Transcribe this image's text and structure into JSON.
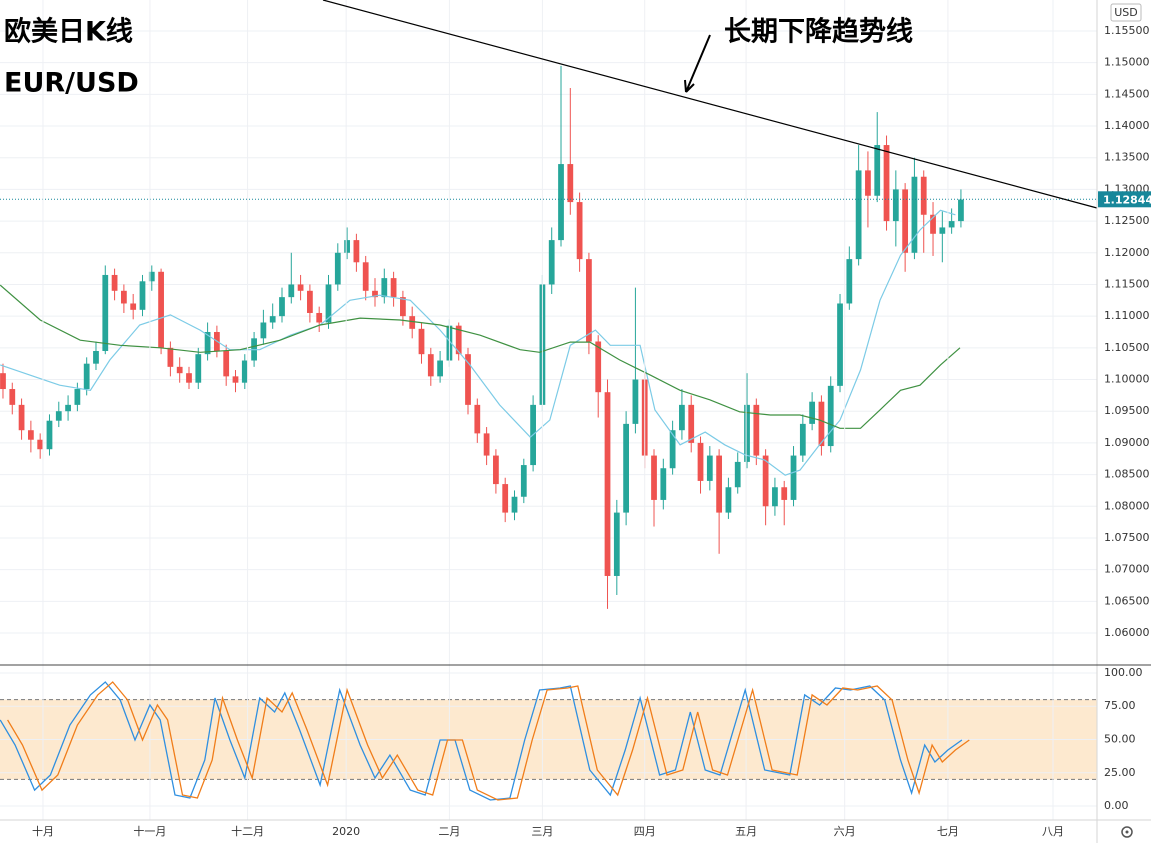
{
  "chart_data": [
    {
      "type": "candlestick",
      "title": "欧美日K线",
      "subtitle": "EUR/USD",
      "annotation": "长期下降趋势线",
      "currency": "USD",
      "last_price": 1.12844,
      "last_price_color": "#17879a",
      "up_color": "#26a69a",
      "down_color": "#ef5350",
      "grid": true,
      "xlim": [
        -0.32,
        117.63
      ],
      "ylim": [
        1.05495,
        1.15989
      ],
      "yticks": [
        {
          "value": 1.06,
          "label": "1.06000"
        },
        {
          "value": 1.065,
          "label": "1.06500"
        },
        {
          "value": 1.07,
          "label": "1.07000"
        },
        {
          "value": 1.075,
          "label": "1.07500"
        },
        {
          "value": 1.08,
          "label": "1.08000"
        },
        {
          "value": 1.085,
          "label": "1.08500"
        },
        {
          "value": 1.09,
          "label": "1.09000"
        },
        {
          "value": 1.095,
          "label": "1.09500"
        },
        {
          "value": 1.1,
          "label": "1.10000"
        },
        {
          "value": 1.105,
          "label": "1.10500"
        },
        {
          "value": 1.11,
          "label": "1.11000"
        },
        {
          "value": 1.115,
          "label": "1.11500"
        },
        {
          "value": 1.12,
          "label": "1.12000"
        },
        {
          "value": 1.125,
          "label": "1.12500"
        },
        {
          "value": 1.13,
          "label": "1.13000"
        },
        {
          "value": 1.135,
          "label": "1.13500"
        },
        {
          "value": 1.14,
          "label": "1.14000"
        },
        {
          "value": 1.145,
          "label": "1.14500"
        },
        {
          "value": 1.15,
          "label": "1.15000"
        },
        {
          "value": 1.155,
          "label": "1.15500"
        }
      ],
      "open": [
        1.101,
        1.0985,
        1.096,
        1.092,
        1.0905,
        1.089,
        1.0935,
        1.095,
        1.096,
        1.0985,
        1.1025,
        1.1045,
        1.1165,
        1.114,
        1.112,
        1.111,
        1.1155,
        1.117,
        1.105,
        1.102,
        1.101,
        1.0995,
        1.104,
        1.1075,
        1.1045,
        1.1005,
        1.0995,
        1.103,
        1.1065,
        1.109,
        1.11,
        1.113,
        1.115,
        1.114,
        1.1105,
        1.109,
        1.115,
        1.12,
        1.122,
        1.1185,
        1.114,
        1.113,
        1.116,
        1.113,
        1.11,
        1.108,
        1.104,
        1.1005,
        1.103,
        1.1085,
        1.104,
        1.096,
        1.0915,
        1.088,
        1.0835,
        1.079,
        1.0815,
        1.0865,
        1.096,
        1.115,
        1.122,
        1.134,
        1.128,
        1.119,
        1.106,
        1.098,
        1.069,
        1.079,
        1.093,
        1.1,
        1.088,
        1.081,
        1.086,
        1.092,
        1.096,
        1.09,
        1.084,
        1.088,
        1.079,
        1.083,
        1.087,
        1.096,
        1.088,
        1.08,
        1.083,
        1.081,
        1.088,
        1.093,
        1.0965,
        1.0895,
        1.099,
        1.112,
        1.119,
        1.133,
        1.129,
        1.137,
        1.125,
        1.13,
        1.12,
        1.132,
        1.126,
        1.123,
        1.124,
        1.125
      ],
      "high": [
        1.1025,
        1.0995,
        1.097,
        1.0935,
        1.0915,
        1.0945,
        1.0965,
        1.0975,
        1.0995,
        1.1035,
        1.106,
        1.118,
        1.1175,
        1.115,
        1.1135,
        1.1165,
        1.118,
        1.1175,
        1.106,
        1.1035,
        1.102,
        1.105,
        1.109,
        1.1085,
        1.1055,
        1.1015,
        1.104,
        1.1075,
        1.111,
        1.112,
        1.1145,
        1.12,
        1.1165,
        1.115,
        1.1115,
        1.1165,
        1.1215,
        1.124,
        1.123,
        1.1195,
        1.116,
        1.1175,
        1.117,
        1.114,
        1.1115,
        1.109,
        1.105,
        1.1045,
        1.1095,
        1.109,
        1.105,
        1.097,
        1.0925,
        1.089,
        1.0845,
        1.0825,
        1.0875,
        1.0975,
        1.1165,
        1.124,
        1.1495,
        1.146,
        1.1295,
        1.12,
        1.107,
        1.1,
        1.081,
        1.095,
        1.1145,
        1.101,
        1.089,
        1.0875,
        1.0935,
        1.0985,
        1.0975,
        1.091,
        1.0895,
        1.089,
        1.0845,
        1.0885,
        1.101,
        1.097,
        1.089,
        1.0845,
        1.084,
        1.0895,
        1.0945,
        1.098,
        1.0975,
        1.1005,
        1.1135,
        1.121,
        1.137,
        1.136,
        1.1422,
        1.1385,
        1.133,
        1.131,
        1.135,
        1.133,
        1.128,
        1.1265,
        1.127,
        1.13
      ],
      "low": [
        1.097,
        1.0945,
        1.0905,
        1.0885,
        1.0875,
        1.088,
        1.0925,
        1.0935,
        1.095,
        1.0975,
        1.1015,
        1.104,
        1.1125,
        1.1105,
        1.1095,
        1.11,
        1.114,
        1.104,
        1.1005,
        1.0995,
        1.0985,
        1.0985,
        1.103,
        1.1035,
        1.099,
        1.098,
        1.0985,
        1.102,
        1.1055,
        1.108,
        1.109,
        1.112,
        1.1125,
        1.109,
        1.1075,
        1.108,
        1.114,
        1.119,
        1.117,
        1.1125,
        1.1115,
        1.112,
        1.1115,
        1.1085,
        1.1065,
        1.1025,
        1.099,
        1.0995,
        1.102,
        1.103,
        1.0945,
        1.09,
        1.0865,
        1.082,
        1.0775,
        1.0778,
        1.0805,
        1.0855,
        1.095,
        1.1135,
        1.121,
        1.126,
        1.117,
        1.104,
        1.094,
        1.0638,
        1.066,
        1.077,
        1.0915,
        1.086,
        1.0768,
        1.0795,
        1.085,
        1.0905,
        1.0885,
        1.082,
        1.0825,
        1.0725,
        1.078,
        1.082,
        1.086,
        1.0865,
        1.077,
        1.0785,
        1.077,
        1.08,
        1.087,
        1.092,
        1.088,
        1.0885,
        1.098,
        1.111,
        1.118,
        1.124,
        1.128,
        1.1235,
        1.121,
        1.117,
        1.119,
        1.12,
        1.1195,
        1.1185,
        1.123,
        1.124
      ],
      "close": [
        1.0985,
        1.096,
        1.092,
        1.0905,
        1.089,
        1.0935,
        1.095,
        1.096,
        1.0985,
        1.1025,
        1.1045,
        1.1165,
        1.114,
        1.112,
        1.111,
        1.1155,
        1.117,
        1.105,
        1.102,
        1.101,
        1.0995,
        1.104,
        1.1075,
        1.1045,
        1.1005,
        1.0995,
        1.103,
        1.1065,
        1.109,
        1.11,
        1.113,
        1.115,
        1.114,
        1.1105,
        1.109,
        1.115,
        1.12,
        1.122,
        1.1185,
        1.114,
        1.113,
        1.116,
        1.113,
        1.11,
        1.108,
        1.104,
        1.1005,
        1.103,
        1.1085,
        1.104,
        1.096,
        1.0915,
        1.088,
        1.0835,
        1.079,
        1.0815,
        1.0865,
        1.096,
        1.115,
        1.122,
        1.134,
        1.128,
        1.119,
        1.106,
        1.098,
        1.069,
        1.079,
        1.093,
        1.1,
        1.088,
        1.081,
        1.086,
        1.092,
        1.096,
        1.09,
        1.084,
        1.088,
        1.079,
        1.083,
        1.087,
        1.096,
        1.088,
        1.08,
        1.083,
        1.081,
        1.088,
        1.093,
        1.0965,
        1.0895,
        1.099,
        1.112,
        1.119,
        1.133,
        1.129,
        1.137,
        1.125,
        1.13,
        1.12,
        1.132,
        1.126,
        1.123,
        1.124,
        1.125,
        1.1284
      ],
      "lines": [
        {
          "color": "#7ccbe6",
          "x": [
            -0.3,
            2.9,
            6.1,
            9.4,
            11.5,
            14.7,
            18,
            21.2,
            24.4,
            27.6,
            30.9,
            34.1,
            37.3,
            40.5,
            43.8,
            47,
            50.2,
            53.4,
            56.7,
            58.8,
            61,
            63.7,
            65.3,
            66.9,
            68.5,
            70.1,
            72.8,
            75.5,
            77.6,
            79.8,
            81.9,
            84.1,
            85.7,
            87.8,
            90,
            92.2,
            94.3,
            96.5,
            98.6,
            100.8,
            102.4
          ],
          "values": [
            1.1023,
            1.1007,
            1.0991,
            1.0983,
            1.1031,
            1.1086,
            1.1102,
            1.1078,
            1.1047,
            1.1047,
            1.107,
            1.1086,
            1.1125,
            1.1133,
            1.1125,
            1.1078,
            1.1023,
            1.096,
            1.0909,
            1.0936,
            1.1054,
            1.1078,
            1.1054,
            1.1054,
            1.1054,
            1.0952,
            1.0897,
            1.0917,
            1.0897,
            1.0881,
            1.0873,
            1.0849,
            1.0857,
            1.0897,
            1.0936,
            1.1015,
            1.1125,
            1.1196,
            1.1236,
            1.1267,
            1.126
          ]
        },
        {
          "color": "#3f9142",
          "x": [
            -0.3,
            4,
            8.3,
            12.6,
            16.9,
            21.2,
            25.5,
            29.8,
            34.1,
            38.4,
            42.7,
            47,
            51.3,
            55.6,
            57.7,
            61,
            63.1,
            66.3,
            69.6,
            72.8,
            76,
            79.2,
            82.5,
            85.7,
            87.8,
            90,
            92.2,
            94.3,
            96.5,
            98.6,
            100.8,
            102.9
          ],
          "values": [
            1.1149,
            1.1094,
            1.1062,
            1.1054,
            1.105,
            1.1043,
            1.1047,
            1.1062,
            1.1086,
            1.1097,
            1.1094,
            1.1086,
            1.107,
            1.1047,
            1.1043,
            1.1059,
            1.1059,
            1.1031,
            1.1007,
            1.0983,
            1.0968,
            1.0949,
            1.0944,
            1.0944,
            1.0936,
            1.0923,
            1.0923,
            1.0952,
            1.0983,
            1.0991,
            1.1023,
            1.105
          ]
        }
      ]
    },
    {
      "type": "line",
      "xlim": [
        -0.32,
        117.63
      ],
      "ylim": [
        -10.5,
        106
      ],
      "band": [
        20,
        80
      ],
      "band_color": "#fde9cf",
      "grid": true,
      "yticks": [
        {
          "value": 0,
          "label": "0.00"
        },
        {
          "value": 25,
          "label": "25.00"
        },
        {
          "value": 50,
          "label": "50.00"
        },
        {
          "value": 75,
          "label": "75.00"
        },
        {
          "value": 100,
          "label": "100.00"
        }
      ],
      "xticks": [
        {
          "value": 4.3,
          "label": "十月"
        },
        {
          "value": 15.8,
          "label": "十一月"
        },
        {
          "value": 26.3,
          "label": "十二月"
        },
        {
          "value": 36.9,
          "label": "2020"
        },
        {
          "value": 48,
          "label": "二月"
        },
        {
          "value": 58,
          "label": "三月"
        },
        {
          "value": 69,
          "label": "四月"
        },
        {
          "value": 79.9,
          "label": "五月"
        },
        {
          "value": 90.5,
          "label": "六月"
        },
        {
          "value": 101.6,
          "label": "七月"
        },
        {
          "value": 112.9,
          "label": "八月"
        }
      ],
      "series": [
        {
          "color": "#2f8fe0",
          "x": [
            -0.3,
            1.3,
            3.4,
            5.1,
            7.2,
            9.4,
            11,
            12.6,
            14.2,
            15.8,
            16.9,
            18.5,
            20.1,
            21.7,
            22.8,
            24.4,
            26,
            27.6,
            29.2,
            30.3,
            31.9,
            34.1,
            36.2,
            38.4,
            40,
            41.6,
            43.8,
            45.4,
            47,
            48.6,
            50.2,
            52.4,
            54.5,
            56.1,
            57.7,
            59.9,
            61,
            63.1,
            65.3,
            66.9,
            68.5,
            70.6,
            72.3,
            73.9,
            75.5,
            77.1,
            79.8,
            81.9,
            84.6,
            86.2,
            87.8,
            89.5,
            91.1,
            93.2,
            94.8,
            96.5,
            97.7,
            99.1,
            100.2,
            101.6,
            103.1
          ],
          "values": [
            64.7,
            45.9,
            12.0,
            23.3,
            60.9,
            83.5,
            93.2,
            79.7,
            49.6,
            75.9,
            64.7,
            8.3,
            6.0,
            34.6,
            81.2,
            49.6,
            21.1,
            81.2,
            70.7,
            85.0,
            57.1,
            15.8,
            87.2,
            45.9,
            21.1,
            38.3,
            12.0,
            8.3,
            49.6,
            49.6,
            12.0,
            4.5,
            6.0,
            49.6,
            87.2,
            88.7,
            90.2,
            27.1,
            8.3,
            42.1,
            81.2,
            23.3,
            27.1,
            70.7,
            27.1,
            23.3,
            87.2,
            27.1,
            23.3,
            83.5,
            75.9,
            88.7,
            87.2,
            90.2,
            79.7,
            34.6,
            9.8,
            45.9,
            33.1,
            42.1,
            49.6
          ]
        },
        {
          "color": "#f07d1a",
          "x": [
            0.5,
            2.1,
            4.2,
            5.9,
            8,
            10.2,
            11.8,
            13.4,
            15,
            16.6,
            17.7,
            19.3,
            20.9,
            22.5,
            23.6,
            25.2,
            26.8,
            28.4,
            30,
            31.1,
            32.7,
            34.9,
            37,
            39.2,
            40.8,
            42.4,
            44.6,
            46.2,
            47.8,
            49.4,
            51,
            53.2,
            55.3,
            56.9,
            58.5,
            60.7,
            61.8,
            63.9,
            66.1,
            67.7,
            69.3,
            71.4,
            73.1,
            74.7,
            76.3,
            77.9,
            80.6,
            82.7,
            85.4,
            87,
            88.6,
            90.3,
            91.9,
            94,
            95.6,
            97.3,
            98.5,
            99.9,
            101,
            102.4,
            103.9
          ],
          "values": [
            64.7,
            45.9,
            12.0,
            23.3,
            60.9,
            83.5,
            93.2,
            79.7,
            49.6,
            75.9,
            64.7,
            8.3,
            6.0,
            34.6,
            81.2,
            49.6,
            21.1,
            81.2,
            70.7,
            85.0,
            57.1,
            15.8,
            87.2,
            45.9,
            21.1,
            38.3,
            12.0,
            8.3,
            49.6,
            49.6,
            12.0,
            4.5,
            6.0,
            49.6,
            87.2,
            88.7,
            90.2,
            27.1,
            8.3,
            42.1,
            81.2,
            23.3,
            27.1,
            70.7,
            27.1,
            23.3,
            87.2,
            27.1,
            23.3,
            83.5,
            75.9,
            88.7,
            87.2,
            90.2,
            79.7,
            34.6,
            9.8,
            45.9,
            33.1,
            42.1,
            49.6
          ]
        }
      ]
    }
  ]
}
